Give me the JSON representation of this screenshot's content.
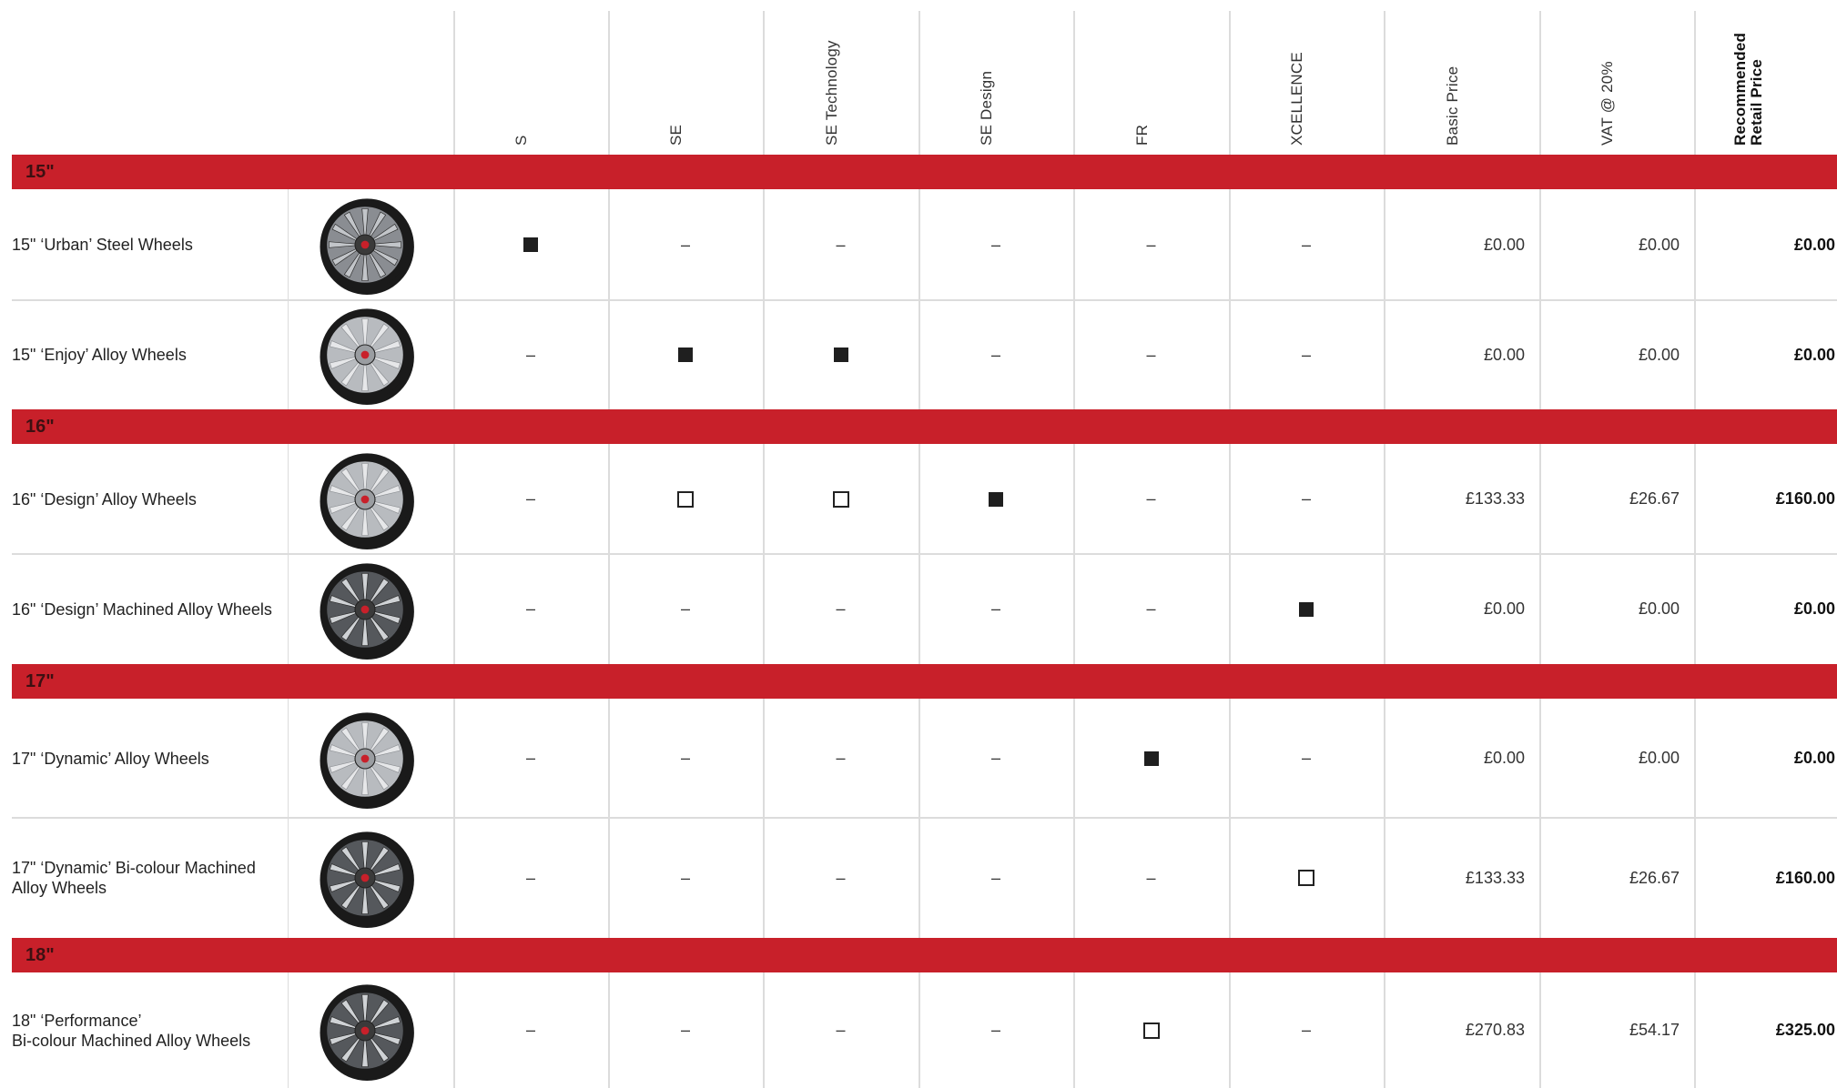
{
  "columns": [
    "S",
    "SE",
    "SE Technology",
    "SE Design",
    "FR",
    "XCELLENCE"
  ],
  "price_headers": [
    "Basic Price",
    "VAT @ 20%",
    "Recommended\nRetail Price"
  ],
  "symbols": {
    "standard": "standard",
    "option": "option",
    "not_available": "–"
  },
  "colors": {
    "band": "#c8202a",
    "band_text": "#3c1012",
    "grid": "#dcdcdc"
  },
  "groups": [
    {
      "label": "15\"",
      "rows": [
        {
          "name": "15\" ‘Urban’ Steel Wheels",
          "image": "steel-wheel-icon",
          "marks": [
            "standard",
            "na",
            "na",
            "na",
            "na",
            "na"
          ],
          "basic": "£0.00",
          "vat": "£0.00",
          "rrp": "£0.00"
        },
        {
          "name": "15\" ‘Enjoy’ Alloy Wheels",
          "image": "alloy-wheel-icon",
          "marks": [
            "na",
            "standard",
            "standard",
            "na",
            "na",
            "na"
          ],
          "basic": "£0.00",
          "vat": "£0.00",
          "rrp": "£0.00"
        }
      ]
    },
    {
      "label": "16\"",
      "rows": [
        {
          "name": "16\" ‘Design’ Alloy Wheels",
          "image": "alloy-wheel-icon",
          "marks": [
            "na",
            "option",
            "option",
            "standard",
            "na",
            "na"
          ],
          "basic": "£133.33",
          "vat": "£26.67",
          "rrp": "£160.00"
        },
        {
          "name": "16\" ‘Design’ Machined Alloy Wheels",
          "image": "machined-alloy-wheel-icon",
          "marks": [
            "na",
            "na",
            "na",
            "na",
            "na",
            "standard"
          ],
          "basic": "£0.00",
          "vat": "£0.00",
          "rrp": "£0.00"
        }
      ]
    },
    {
      "label": "17\"",
      "rows": [
        {
          "name": "17\" ‘Dynamic’ Alloy Wheels",
          "image": "alloy-wheel-icon",
          "marks": [
            "na",
            "na",
            "na",
            "na",
            "standard",
            "na"
          ],
          "basic": "£0.00",
          "vat": "£0.00",
          "rrp": "£0.00"
        },
        {
          "name": "17\" ‘Dynamic’ Bi-colour Machined\nAlloy Wheels",
          "image": "machined-alloy-wheel-icon",
          "marks": [
            "na",
            "na",
            "na",
            "na",
            "na",
            "option"
          ],
          "basic": "£133.33",
          "vat": "£26.67",
          "rrp": "£160.00"
        }
      ]
    },
    {
      "label": "18\"",
      "rows": [
        {
          "name": "18\" ‘Performance’\nBi-colour Machined Alloy Wheels",
          "image": "machined-alloy-wheel-icon",
          "marks": [
            "na",
            "na",
            "na",
            "na",
            "option",
            "na"
          ],
          "basic": "£270.83",
          "vat": "£54.17",
          "rrp": "£325.00"
        }
      ]
    }
  ]
}
